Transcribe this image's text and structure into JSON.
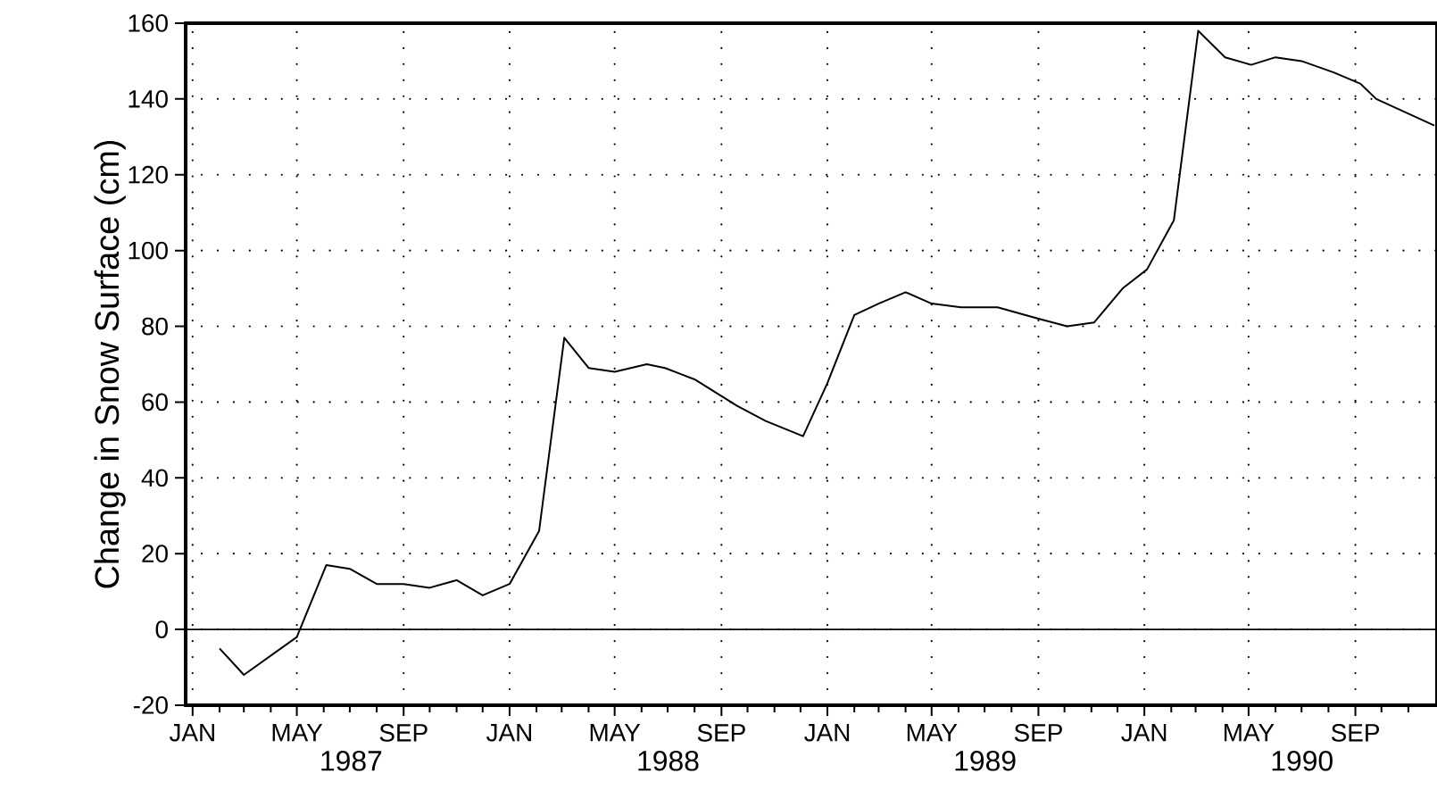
{
  "chart_data": {
    "type": "line",
    "ylabel": "Change in Snow Surface (cm)",
    "x": [
      "1987-02-01",
      "1987-03-01",
      "1987-05-01",
      "1987-06-04",
      "1987-07-01",
      "1987-08-01",
      "1987-09-01",
      "1987-10-01",
      "1987-11-01",
      "1987-12-01",
      "1988-01-01",
      "1988-02-04",
      "1988-03-04",
      "1988-04-01",
      "1988-05-01",
      "1988-06-07",
      "1988-06-28",
      "1988-08-01",
      "1988-09-19",
      "1988-10-22",
      "1988-12-04",
      "1989-01-01",
      "1989-02-01",
      "1989-03-01",
      "1989-04-01",
      "1989-05-01",
      "1989-06-04",
      "1989-07-16",
      "1989-09-01",
      "1989-10-04",
      "1989-11-04",
      "1989-12-07",
      "1990-01-04",
      "1990-02-04",
      "1990-03-04",
      "1990-04-04",
      "1990-05-04",
      "1990-06-01",
      "1990-07-01",
      "1990-08-07",
      "1990-09-07",
      "1990-09-25",
      "1990-12-01"
    ],
    "values": [
      -5,
      -12,
      -2,
      17,
      16,
      12,
      12,
      11,
      13,
      9,
      12,
      26,
      77,
      69,
      68,
      70,
      69,
      66,
      59,
      55,
      51,
      65,
      83,
      86,
      89,
      86,
      85,
      85,
      82,
      80,
      81,
      90,
      95,
      108,
      158,
      151,
      149,
      151,
      150,
      147,
      144,
      140,
      133
    ],
    "color": "#000000",
    "xlim": [
      "1986-12-24",
      "1990-12-04"
    ],
    "ylim": [
      -20,
      160
    ],
    "xticks": [
      {
        "value": "1987-01-01",
        "label": "JAN"
      },
      {
        "value": "1987-02-01",
        "label": null
      },
      {
        "value": "1987-03-01",
        "label": null
      },
      {
        "value": "1987-04-01",
        "label": null
      },
      {
        "value": "1987-05-01",
        "label": "MAY"
      },
      {
        "value": "1987-06-01",
        "label": null
      },
      {
        "value": "1987-07-01",
        "label": null
      },
      {
        "value": "1987-08-01",
        "label": null
      },
      {
        "value": "1987-09-01",
        "label": "SEP"
      },
      {
        "value": "1987-10-01",
        "label": null
      },
      {
        "value": "1987-11-01",
        "label": null
      },
      {
        "value": "1987-12-01",
        "label": null
      },
      {
        "value": "1988-01-01",
        "label": "JAN"
      },
      {
        "value": "1988-02-01",
        "label": null
      },
      {
        "value": "1988-03-01",
        "label": null
      },
      {
        "value": "1988-04-01",
        "label": null
      },
      {
        "value": "1988-05-01",
        "label": "MAY"
      },
      {
        "value": "1988-06-01",
        "label": null
      },
      {
        "value": "1988-07-01",
        "label": null
      },
      {
        "value": "1988-08-01",
        "label": null
      },
      {
        "value": "1988-09-01",
        "label": "SEP"
      },
      {
        "value": "1988-10-01",
        "label": null
      },
      {
        "value": "1988-11-01",
        "label": null
      },
      {
        "value": "1988-12-01",
        "label": null
      },
      {
        "value": "1989-01-01",
        "label": "JAN"
      },
      {
        "value": "1989-02-01",
        "label": null
      },
      {
        "value": "1989-03-01",
        "label": null
      },
      {
        "value": "1989-04-01",
        "label": null
      },
      {
        "value": "1989-05-01",
        "label": "MAY"
      },
      {
        "value": "1989-06-01",
        "label": null
      },
      {
        "value": "1989-07-01",
        "label": null
      },
      {
        "value": "1989-08-01",
        "label": null
      },
      {
        "value": "1989-09-01",
        "label": "SEP"
      },
      {
        "value": "1989-10-01",
        "label": null
      },
      {
        "value": "1989-11-01",
        "label": null
      },
      {
        "value": "1989-12-01",
        "label": null
      },
      {
        "value": "1990-01-01",
        "label": "JAN"
      },
      {
        "value": "1990-02-01",
        "label": null
      },
      {
        "value": "1990-03-01",
        "label": null
      },
      {
        "value": "1990-04-01",
        "label": null
      },
      {
        "value": "1990-05-01",
        "label": "MAY"
      },
      {
        "value": "1990-06-01",
        "label": null
      },
      {
        "value": "1990-07-01",
        "label": null
      },
      {
        "value": "1990-08-01",
        "label": null
      },
      {
        "value": "1990-09-01",
        "label": "SEP"
      },
      {
        "value": "1990-10-01",
        "label": null
      },
      {
        "value": "1990-11-01",
        "label": null
      }
    ],
    "yticks": [
      -20,
      0,
      20,
      40,
      60,
      80,
      100,
      120,
      140,
      160
    ],
    "grid": true,
    "marker": "none",
    "line_style": "solid",
    "ref_lines": [
      {
        "axis": "y",
        "value": 0,
        "label": null
      }
    ],
    "annotations": [
      "1987",
      "1988",
      "1989",
      "1990"
    ]
  }
}
